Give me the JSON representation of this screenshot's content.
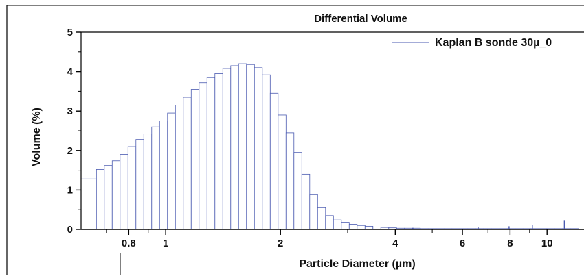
{
  "chart_data": {
    "type": "bar",
    "title": "Differential Volume",
    "xlabel": "Particle Diameter (µm)",
    "ylabel": "Volume (%)",
    "x_scale": "log",
    "xlim": [
      0.6,
      12.5
    ],
    "ylim": [
      0,
      5
    ],
    "x_ticks": [
      0.8,
      1,
      2,
      4,
      6,
      8,
      10
    ],
    "x_tick_labels": [
      "0.8",
      "1",
      "2",
      "4",
      "6",
      "8",
      "10"
    ],
    "y_ticks": [
      0,
      1,
      2,
      3,
      4,
      5
    ],
    "y_tick_labels": [
      "0",
      "1",
      "2",
      "3",
      "4",
      "5"
    ],
    "grid": false,
    "legend_position": "top-right",
    "series": [
      {
        "name": "Kaplan  B sonde 30µ_0",
        "color": "#4a5ab0",
        "bin_edges": [
          0.6,
          0.6582,
          0.6903,
          0.724,
          0.7594,
          0.7965,
          0.8354,
          0.8762,
          0.919,
          0.9639,
          1.011,
          1.0604,
          1.1122,
          1.1666,
          1.2236,
          1.2834,
          1.3461,
          1.4119,
          1.4809,
          1.5532,
          1.6291,
          1.7087,
          1.7923,
          1.8799,
          1.9717,
          2.068,
          2.169,
          2.275,
          2.3862,
          2.5028,
          2.6251,
          2.7534,
          2.888,
          3.0291,
          3.1771,
          3.3323,
          3.4951,
          3.6659,
          3.8451,
          4.033,
          4.2301,
          4.4368,
          4.6536,
          4.881,
          5.1195,
          5.3697,
          5.632,
          5.9072,
          6.1959,
          6.4987,
          6.8163,
          7.1493,
          7.4987,
          7.8651,
          8.2495,
          8.6526,
          9.0754,
          9.5189,
          9.984,
          10.472,
          10.984,
          11.52,
          12.08
        ],
        "values": [
          1.28,
          1.52,
          1.62,
          1.74,
          1.9,
          2.1,
          2.28,
          2.42,
          2.6,
          2.75,
          2.95,
          3.15,
          3.35,
          3.55,
          3.72,
          3.85,
          3.95,
          4.08,
          4.15,
          4.2,
          4.18,
          4.1,
          3.92,
          3.45,
          2.9,
          2.45,
          1.95,
          1.4,
          0.88,
          0.55,
          0.35,
          0.24,
          0.18,
          0.13,
          0.1,
          0.08,
          0.06,
          0.05,
          0.04,
          0.03,
          0.03,
          0.03,
          0.02,
          0.02,
          0.02,
          0.02,
          0.02,
          0.02,
          0.02,
          0.02,
          0.02,
          0.02,
          0.02,
          0.02,
          0.02,
          0.02,
          0.02,
          0.02,
          0.02,
          0.02,
          0.02,
          0.02
        ],
        "spikes": [
          {
            "x": 4.45,
            "y": 0.04
          },
          {
            "x": 6.6,
            "y": 0.05
          },
          {
            "x": 7.95,
            "y": 0.08
          },
          {
            "x": 9.15,
            "y": 0.12
          },
          {
            "x": 11.1,
            "y": 0.22
          }
        ]
      }
    ]
  }
}
